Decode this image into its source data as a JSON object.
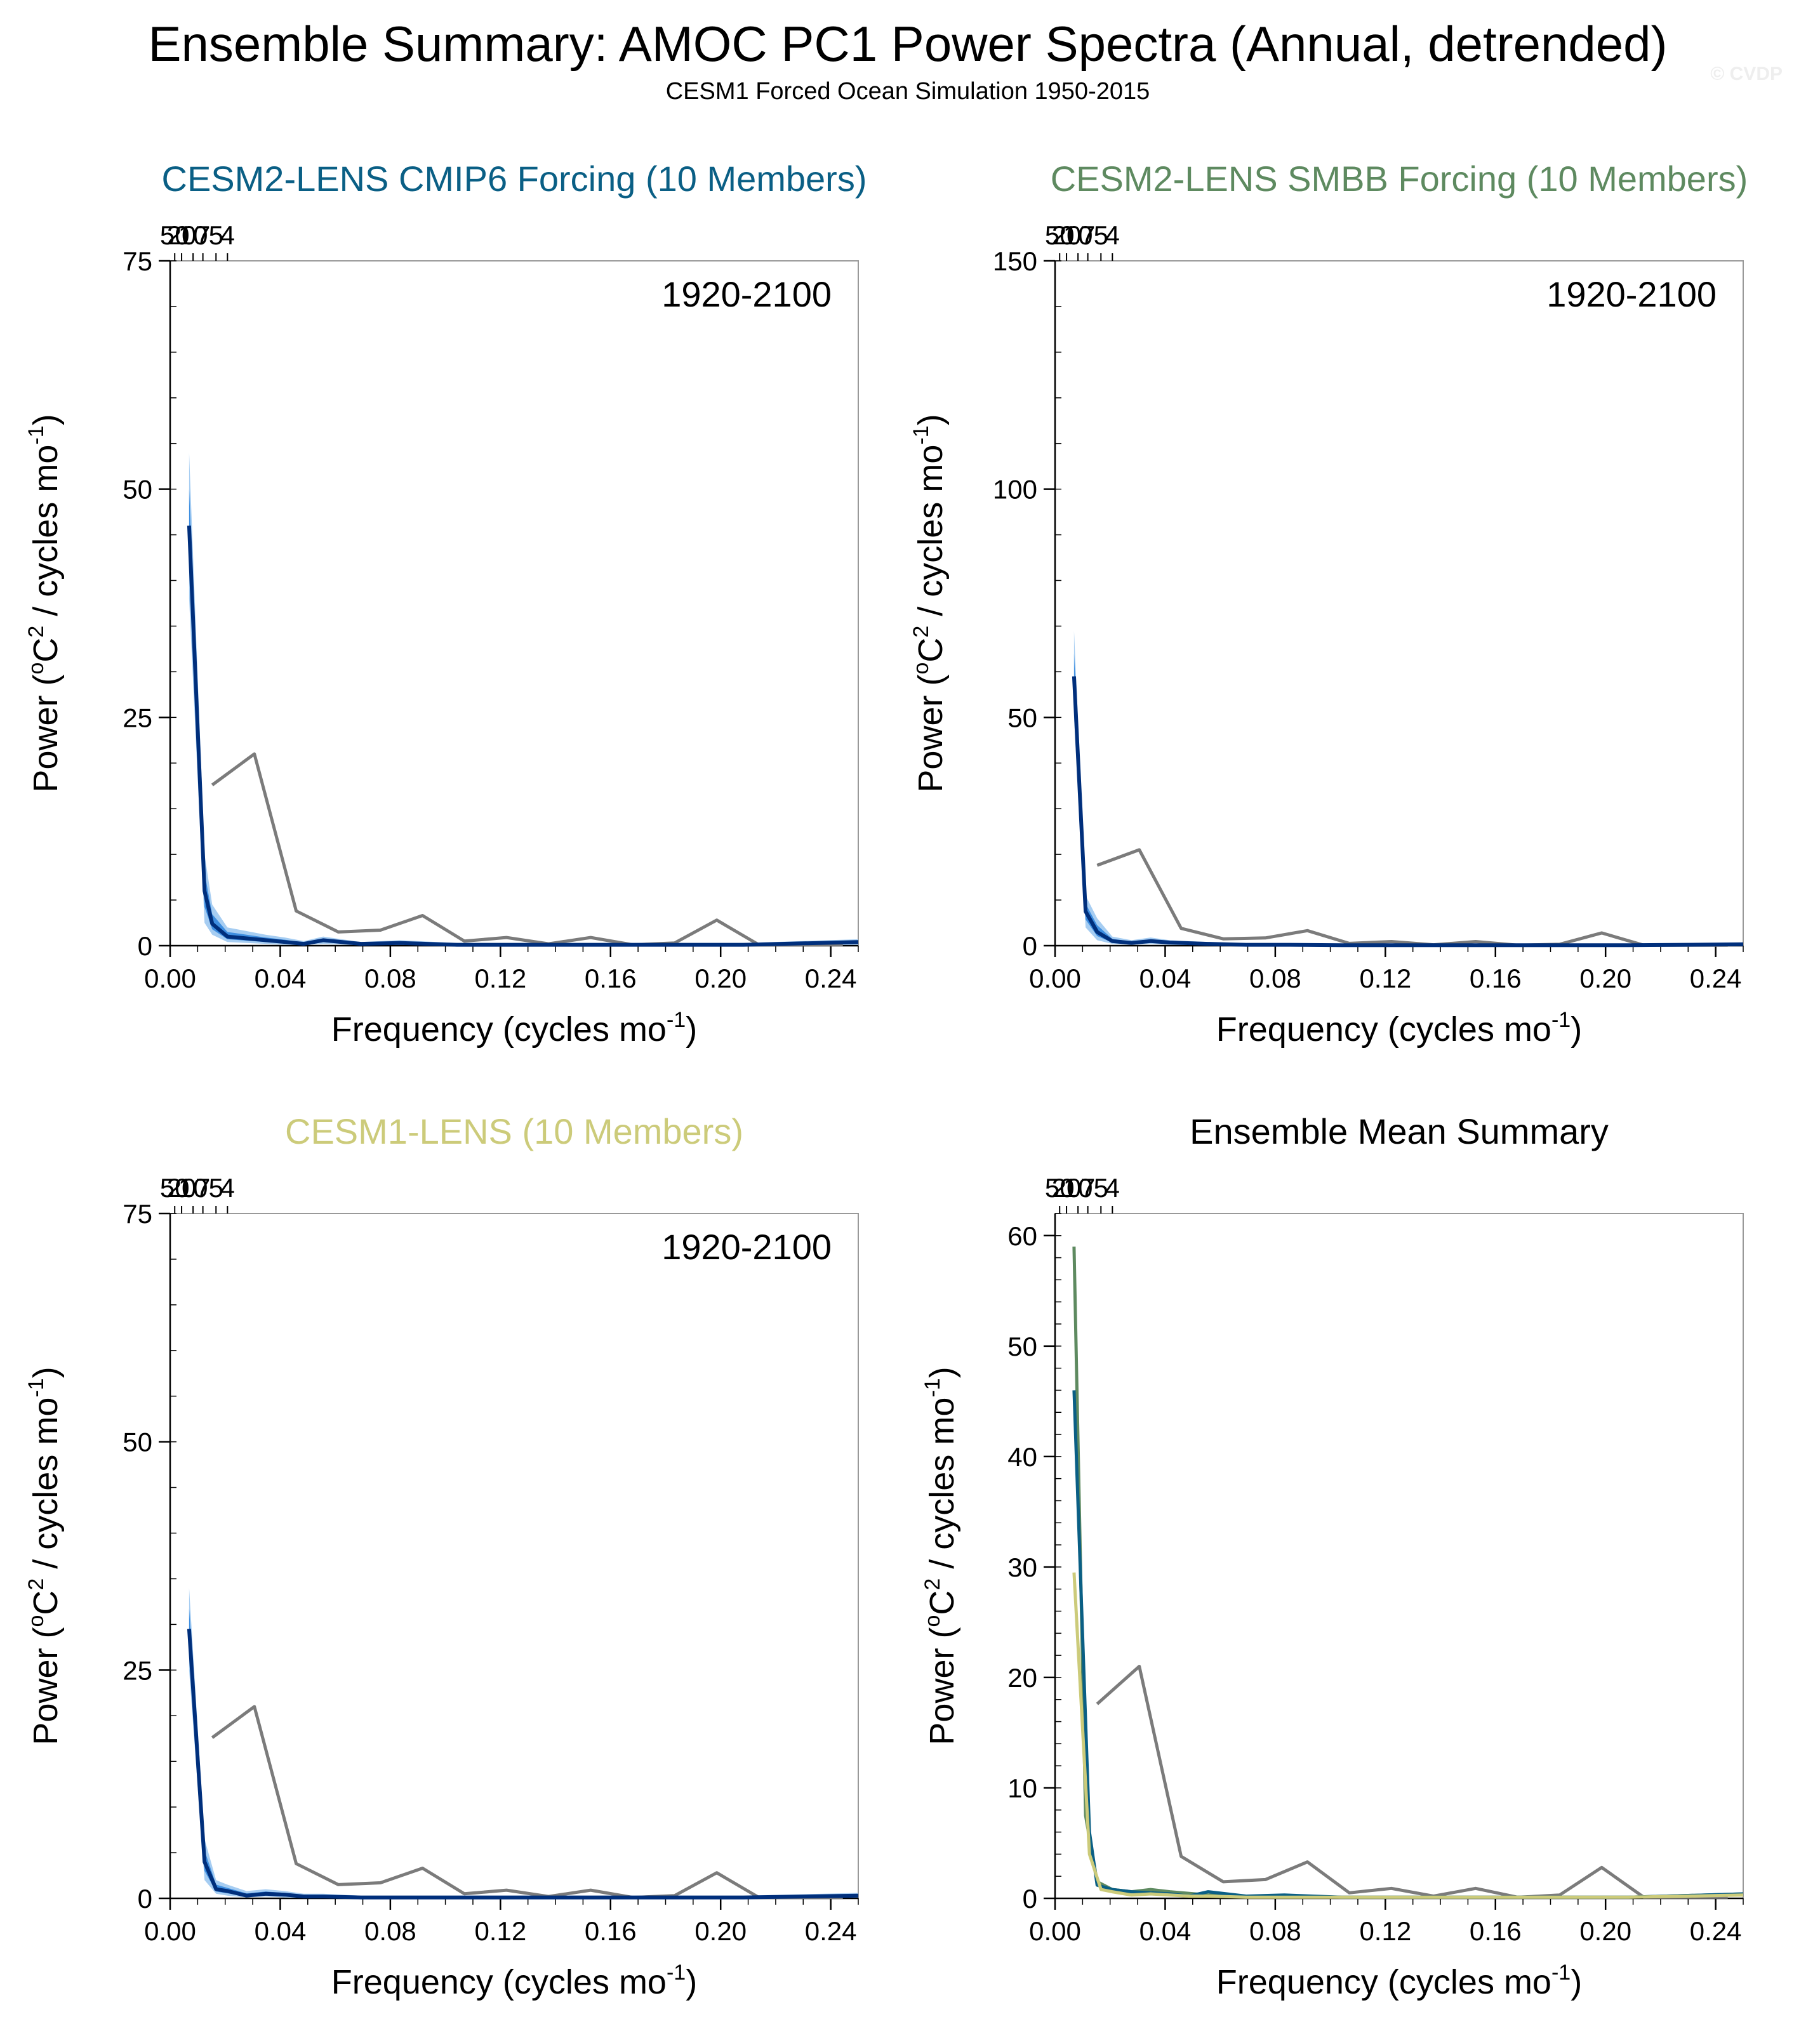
{
  "header": {
    "title": "Ensemble Summary: AMOC PC1 Power Spectra (Annual, detrended)",
    "subtitle": "CESM1 Forced Ocean Simulation 1950-2015",
    "watermark": "© CVDP"
  },
  "colors": {
    "cmip6": "#0a5f85",
    "smbb": "#5e8a60",
    "cesm1": "#cccb7a",
    "ens_line": "#002f7c",
    "band_outer": "#a6cdf2",
    "band_inner": "#3e8ee0",
    "obs": "#7b7b7b",
    "axis": "#000000",
    "frame": "#999999"
  },
  "common": {
    "xlabel": "Frequency (cycles mo",
    "xlabel_sup": "-1",
    "xlabel_end": ")",
    "ylabel_a": "Power (",
    "ylabel_sup1": "o",
    "ylabel_b": "C",
    "ylabel_sup2": "2",
    "ylabel_c": " / cycles mo",
    "ylabel_sup3": "-1",
    "ylabel_end": ")",
    "period_labels": [
      "50",
      "20",
      "10",
      "7",
      "5",
      "4"
    ],
    "x_tick_labels": [
      "0.00",
      "0.04",
      "0.08",
      "0.12",
      "0.16",
      "0.20",
      "0.24"
    ]
  },
  "chart_data": [
    {
      "id": "cmip6",
      "type": "line",
      "title": "CESM2-LENS CMIP6 Forcing (10 Members)",
      "period_text": "1920-2100",
      "xlim": [
        0,
        0.25
      ],
      "ylim": [
        0,
        75
      ],
      "y_ticks": [
        0,
        25,
        50,
        75
      ],
      "y_tick_labels": [
        "0",
        "25",
        "50",
        "75"
      ],
      "x_ticks": [
        0,
        0.04,
        0.08,
        0.12,
        0.16,
        0.2,
        0.24
      ],
      "period_ticks": [
        50,
        20,
        10,
        7,
        5,
        4
      ],
      "series": [
        {
          "role": "ensemble",
          "x": [
            0.0069,
            0.0125,
            0.0153,
            0.0208,
            0.0278,
            0.0347,
            0.0417,
            0.0486,
            0.0556,
            0.0694,
            0.0833,
            0.1042,
            0.125,
            0.1667,
            0.2083,
            0.25
          ],
          "values": [
            46,
            6,
            2.4,
            1,
            0.8,
            0.6,
            0.4,
            0.2,
            0.6,
            0.2,
            0.3,
            0.1,
            0.1,
            0.1,
            0.1,
            0.4
          ],
          "lower": [
            38,
            2.5,
            1.2,
            0.4,
            0.3,
            0.2,
            0.1,
            0.1,
            0.2,
            0.05,
            0.1,
            0.02,
            0.02,
            0.02,
            0.02,
            0.1
          ],
          "upper": [
            54,
            10,
            4.5,
            2,
            1.6,
            1.2,
            0.9,
            0.5,
            1,
            0.4,
            0.6,
            0.3,
            0.3,
            0.3,
            0.3,
            0.7
          ]
        },
        {
          "role": "observations",
          "x": [
            0.0153,
            0.0306,
            0.0458,
            0.0611,
            0.0764,
            0.0917,
            0.1069,
            0.1222,
            0.1375,
            0.1528,
            0.1681,
            0.1833,
            0.1986,
            0.2139,
            0.2292,
            0.2444
          ],
          "values": [
            17.6,
            21,
            3.8,
            1.5,
            1.7,
            3.3,
            0.5,
            0.9,
            0.2,
            0.9,
            0.1,
            0.3,
            2.8,
            0.1,
            0.1,
            0.1
          ]
        }
      ]
    },
    {
      "id": "smbb",
      "type": "line",
      "title": "CESM2-LENS SMBB Forcing (10 Members)",
      "period_text": "1920-2100",
      "xlim": [
        0,
        0.25
      ],
      "ylim": [
        0,
        150
      ],
      "y_ticks": [
        0,
        50,
        100,
        150
      ],
      "y_tick_labels": [
        "0",
        "50",
        "100",
        "150"
      ],
      "x_ticks": [
        0,
        0.04,
        0.08,
        0.12,
        0.16,
        0.2,
        0.24
      ],
      "period_ticks": [
        50,
        20,
        10,
        7,
        5,
        4
      ],
      "series": [
        {
          "role": "ensemble",
          "x": [
            0.0069,
            0.0111,
            0.0153,
            0.0208,
            0.0278,
            0.0347,
            0.0417,
            0.0556,
            0.0694,
            0.0833,
            0.1042,
            0.125,
            0.1667,
            0.2083,
            0.25
          ],
          "values": [
            59,
            7.5,
            3,
            1,
            0.6,
            1,
            0.7,
            0.4,
            0.2,
            0.2,
            0.1,
            0.1,
            0.1,
            0.1,
            0.3
          ],
          "lower": [
            50,
            4,
            1.2,
            0.4,
            0.2,
            0.4,
            0.2,
            0.1,
            0.05,
            0.05,
            0.02,
            0.02,
            0.02,
            0.02,
            0.1
          ],
          "upper": [
            69,
            11,
            6,
            2,
            1.2,
            1.8,
            1.2,
            0.8,
            0.4,
            0.4,
            0.3,
            0.3,
            0.3,
            0.3,
            0.6
          ]
        },
        {
          "role": "observations",
          "x": [
            0.0153,
            0.0306,
            0.0458,
            0.0611,
            0.0764,
            0.0917,
            0.1069,
            0.1222,
            0.1375,
            0.1528,
            0.1681,
            0.1833,
            0.1986,
            0.2139,
            0.2292,
            0.2444
          ],
          "values": [
            17.6,
            21,
            3.8,
            1.5,
            1.7,
            3.3,
            0.5,
            0.9,
            0.2,
            0.9,
            0.1,
            0.3,
            2.8,
            0.1,
            0.1,
            0.1
          ]
        }
      ]
    },
    {
      "id": "cesm1",
      "type": "line",
      "title": "CESM1-LENS (10 Members)",
      "period_text": "1920-2100",
      "xlim": [
        0,
        0.25
      ],
      "ylim": [
        0,
        75
      ],
      "y_ticks": [
        0,
        25,
        50,
        75
      ],
      "y_tick_labels": [
        "0",
        "25",
        "50",
        "75"
      ],
      "x_ticks": [
        0,
        0.04,
        0.08,
        0.12,
        0.16,
        0.2,
        0.24
      ],
      "period_ticks": [
        50,
        20,
        10,
        7,
        5,
        4
      ],
      "series": [
        {
          "role": "ensemble",
          "x": [
            0.0069,
            0.0125,
            0.0167,
            0.0208,
            0.0278,
            0.0347,
            0.0417,
            0.0486,
            0.0556,
            0.0694,
            0.0833,
            0.1042,
            0.125,
            0.1667,
            0.2083,
            0.25
          ],
          "values": [
            29.5,
            4,
            1,
            0.8,
            0.3,
            0.5,
            0.4,
            0.2,
            0.2,
            0.1,
            0.1,
            0.1,
            0.1,
            0.1,
            0.1,
            0.3
          ],
          "lower": [
            25,
            2,
            0.5,
            0.3,
            0.1,
            0.2,
            0.1,
            0.05,
            0.05,
            0.02,
            0.02,
            0.02,
            0.02,
            0.02,
            0.02,
            0.1
          ],
          "upper": [
            34,
            6.5,
            2,
            1.5,
            0.8,
            1,
            0.8,
            0.5,
            0.5,
            0.3,
            0.3,
            0.3,
            0.3,
            0.3,
            0.3,
            0.6
          ]
        },
        {
          "role": "observations",
          "x": [
            0.0153,
            0.0306,
            0.0458,
            0.0611,
            0.0764,
            0.0917,
            0.1069,
            0.1222,
            0.1375,
            0.1528,
            0.1681,
            0.1833,
            0.1986,
            0.2139,
            0.2292,
            0.2444
          ],
          "values": [
            17.6,
            21,
            3.8,
            1.5,
            1.7,
            3.3,
            0.5,
            0.9,
            0.2,
            0.9,
            0.1,
            0.3,
            2.8,
            0.1,
            0.1,
            0.1
          ]
        }
      ]
    },
    {
      "id": "summary",
      "type": "line",
      "title": "Ensemble Mean Summary",
      "period_text": "",
      "xlim": [
        0,
        0.25
      ],
      "ylim": [
        0,
        62
      ],
      "y_ticks": [
        0,
        10,
        20,
        30,
        40,
        50,
        60
      ],
      "y_tick_labels": [
        "0",
        "10",
        "20",
        "30",
        "40",
        "50",
        "60"
      ],
      "x_ticks": [
        0,
        0.04,
        0.08,
        0.12,
        0.16,
        0.2,
        0.24
      ],
      "period_ticks": [
        50,
        20,
        10,
        7,
        5,
        4
      ],
      "series": [
        {
          "role": "observations",
          "x": [
            0.0153,
            0.0306,
            0.0458,
            0.0611,
            0.0764,
            0.0917,
            0.1069,
            0.1222,
            0.1375,
            0.1528,
            0.1681,
            0.1833,
            0.1986,
            0.2139,
            0.2292,
            0.2444
          ],
          "values": [
            17.6,
            21,
            3.8,
            1.5,
            1.7,
            3.3,
            0.5,
            0.9,
            0.2,
            0.9,
            0.1,
            0.3,
            2.8,
            0.1,
            0.1,
            0.1
          ]
        },
        {
          "role": "mean-smbb",
          "x": [
            0.0069,
            0.0111,
            0.0153,
            0.0208,
            0.0278,
            0.0347,
            0.0417,
            0.0556,
            0.0694,
            0.0833,
            0.1042,
            0.125,
            0.1667,
            0.2083,
            0.25
          ],
          "values": [
            59,
            7.5,
            1.5,
            0.8,
            0.6,
            0.8,
            0.6,
            0.3,
            0.2,
            0.2,
            0.1,
            0.1,
            0.1,
            0.1,
            0.4
          ]
        },
        {
          "role": "mean-cmip6",
          "x": [
            0.0069,
            0.0125,
            0.0153,
            0.0208,
            0.0278,
            0.0347,
            0.0417,
            0.0486,
            0.0556,
            0.0694,
            0.0833,
            0.1042,
            0.125,
            0.1667,
            0.2083,
            0.25
          ],
          "values": [
            46,
            6,
            1.2,
            0.8,
            0.6,
            0.5,
            0.4,
            0.2,
            0.6,
            0.2,
            0.3,
            0.1,
            0.1,
            0.1,
            0.1,
            0.4
          ]
        },
        {
          "role": "mean-cesm1",
          "x": [
            0.0069,
            0.0125,
            0.0167,
            0.0208,
            0.0278,
            0.0347,
            0.0417,
            0.0486,
            0.0556,
            0.0694,
            0.0833,
            0.1042,
            0.125,
            0.1667,
            0.2083,
            0.25
          ],
          "values": [
            29.5,
            4,
            0.8,
            0.6,
            0.3,
            0.4,
            0.3,
            0.2,
            0.2,
            0.1,
            0.1,
            0.1,
            0.1,
            0.1,
            0.1,
            0.3
          ]
        }
      ]
    }
  ]
}
